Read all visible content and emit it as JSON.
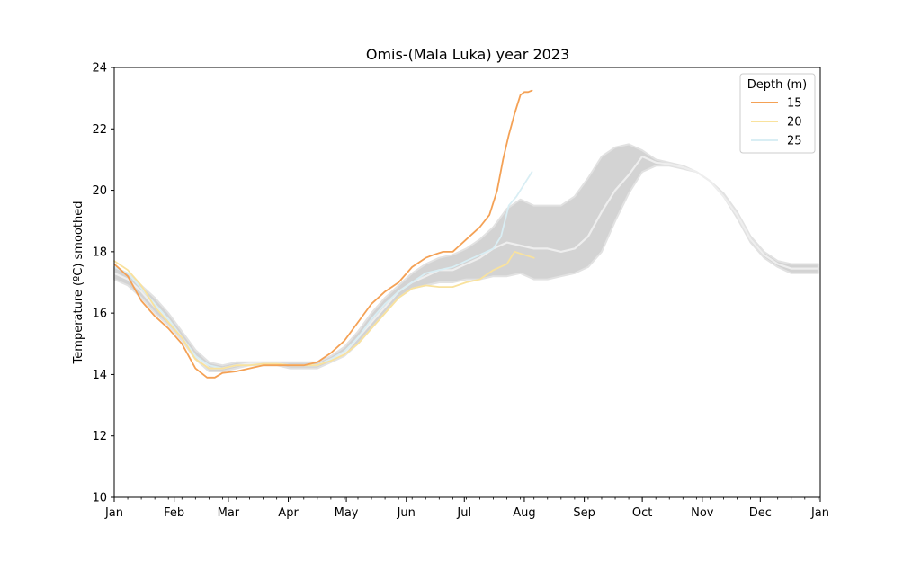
{
  "chart_data": {
    "type": "line",
    "title": "Omis-(Mala Luka) year 2023",
    "xlabel": "",
    "ylabel": "Temperature (ºC) smoothed",
    "ylim": [
      10,
      24
    ],
    "yticks": [
      10,
      12,
      14,
      16,
      18,
      20,
      22,
      24
    ],
    "xlim": [
      "2023-01-01",
      "2024-01-01"
    ],
    "xticks": [
      {
        "date": "2023-01-01",
        "label": "Jan"
      },
      {
        "date": "2023-02-01",
        "label": "Feb"
      },
      {
        "date": "2023-03-01",
        "label": "Mar"
      },
      {
        "date": "2023-04-01",
        "label": "Apr"
      },
      {
        "date": "2023-05-01",
        "label": "May"
      },
      {
        "date": "2023-06-01",
        "label": "Jun"
      },
      {
        "date": "2023-07-01",
        "label": "Jul"
      },
      {
        "date": "2023-08-01",
        "label": "Aug"
      },
      {
        "date": "2023-09-01",
        "label": "Sep"
      },
      {
        "date": "2023-10-01",
        "label": "Oct"
      },
      {
        "date": "2023-11-01",
        "label": "Nov"
      },
      {
        "date": "2023-12-01",
        "label": "Dec"
      },
      {
        "date": "2024-01-01",
        "label": "Jan"
      }
    ],
    "grid": false,
    "legend": {
      "title": "Depth (m)",
      "position": "top-right"
    },
    "band": {
      "color": "#d3d3d3",
      "x": [
        "2023-01-01",
        "2023-01-08",
        "2023-01-15",
        "2023-01-22",
        "2023-01-29",
        "2023-02-05",
        "2023-02-12",
        "2023-02-19",
        "2023-02-26",
        "2023-03-05",
        "2023-03-12",
        "2023-03-19",
        "2023-03-26",
        "2023-04-02",
        "2023-04-09",
        "2023-04-16",
        "2023-04-23",
        "2023-04-30",
        "2023-05-07",
        "2023-05-14",
        "2023-05-21",
        "2023-05-28",
        "2023-06-04",
        "2023-06-11",
        "2023-06-18",
        "2023-06-25",
        "2023-07-02",
        "2023-07-09",
        "2023-07-16",
        "2023-07-23",
        "2023-07-30",
        "2023-08-06",
        "2023-08-13",
        "2023-08-20",
        "2023-08-27",
        "2023-09-03",
        "2023-09-10",
        "2023-09-17",
        "2023-09-24",
        "2023-10-01",
        "2023-10-08",
        "2023-10-15",
        "2023-10-22",
        "2023-10-29",
        "2023-11-05",
        "2023-11-12",
        "2023-11-19",
        "2023-11-26",
        "2023-12-03",
        "2023-12-10",
        "2023-12-17",
        "2023-12-24",
        "2023-12-31"
      ],
      "lower": [
        17.1,
        16.9,
        16.5,
        16.0,
        15.6,
        15.1,
        14.5,
        14.1,
        14.1,
        14.2,
        14.3,
        14.3,
        14.3,
        14.2,
        14.2,
        14.2,
        14.4,
        14.6,
        15.0,
        15.5,
        16.0,
        16.5,
        16.8,
        16.9,
        17.0,
        17.0,
        17.1,
        17.1,
        17.2,
        17.2,
        17.3,
        17.1,
        17.1,
        17.2,
        17.3,
        17.5,
        18.0,
        19.0,
        19.9,
        20.6,
        20.8,
        20.8,
        20.7,
        20.6,
        20.3,
        19.8,
        19.1,
        18.3,
        17.8,
        17.5,
        17.3,
        17.3,
        17.3
      ],
      "upper": [
        17.5,
        17.3,
        16.9,
        16.5,
        16.0,
        15.4,
        14.8,
        14.4,
        14.3,
        14.4,
        14.4,
        14.4,
        14.4,
        14.4,
        14.4,
        14.4,
        14.6,
        14.9,
        15.4,
        16.0,
        16.5,
        16.9,
        17.3,
        17.6,
        17.8,
        17.9,
        18.1,
        18.4,
        18.8,
        19.4,
        19.7,
        19.5,
        19.5,
        19.5,
        19.8,
        20.4,
        21.1,
        21.4,
        21.5,
        21.3,
        21.0,
        20.9,
        20.8,
        20.6,
        20.3,
        19.9,
        19.3,
        18.5,
        18.0,
        17.7,
        17.6,
        17.6,
        17.6
      ],
      "mean": [
        17.3,
        17.1,
        16.7,
        16.2,
        15.8,
        15.2,
        14.6,
        14.2,
        14.2,
        14.3,
        14.35,
        14.35,
        14.35,
        14.3,
        14.3,
        14.3,
        14.5,
        14.7,
        15.2,
        15.7,
        16.2,
        16.7,
        17.0,
        17.2,
        17.4,
        17.4,
        17.6,
        17.8,
        18.1,
        18.3,
        18.2,
        18.1,
        18.1,
        18.0,
        18.1,
        18.5,
        19.3,
        20.0,
        20.5,
        21.1,
        20.9,
        20.85,
        20.75,
        20.6,
        20.3,
        19.8,
        19.2,
        18.4,
        17.9,
        17.6,
        17.45,
        17.45,
        17.45
      ]
    },
    "series": [
      {
        "name": "15",
        "color": "#f4a155",
        "x": [
          "2023-01-01",
          "2023-01-08",
          "2023-01-15",
          "2023-01-22",
          "2023-01-29",
          "2023-02-05",
          "2023-02-12",
          "2023-02-18",
          "2023-02-22",
          "2023-02-26",
          "2023-03-05",
          "2023-03-12",
          "2023-03-19",
          "2023-03-26",
          "2023-04-02",
          "2023-04-09",
          "2023-04-16",
          "2023-04-23",
          "2023-04-30",
          "2023-05-07",
          "2023-05-14",
          "2023-05-21",
          "2023-05-28",
          "2023-06-04",
          "2023-06-11",
          "2023-06-15",
          "2023-06-20",
          "2023-06-25",
          "2023-07-02",
          "2023-07-09",
          "2023-07-14",
          "2023-07-18",
          "2023-07-21",
          "2023-07-24",
          "2023-07-27",
          "2023-07-30",
          "2023-08-01",
          "2023-08-03",
          "2023-08-05"
        ],
        "y": [
          17.6,
          17.2,
          16.4,
          15.9,
          15.5,
          15.0,
          14.2,
          13.9,
          13.9,
          14.05,
          14.1,
          14.2,
          14.3,
          14.3,
          14.3,
          14.3,
          14.4,
          14.7,
          15.1,
          15.7,
          16.3,
          16.7,
          17.0,
          17.5,
          17.8,
          17.9,
          18.0,
          18.0,
          18.4,
          18.8,
          19.2,
          20.0,
          21.0,
          21.8,
          22.5,
          23.1,
          23.2,
          23.2,
          23.25
        ]
      },
      {
        "name": "20",
        "color": "#f9e29d",
        "x": [
          "2023-01-01",
          "2023-01-08",
          "2023-01-15",
          "2023-01-22",
          "2023-01-29",
          "2023-02-05",
          "2023-02-12",
          "2023-02-19",
          "2023-02-26",
          "2023-03-05",
          "2023-03-12",
          "2023-03-19",
          "2023-03-26",
          "2023-04-02",
          "2023-04-09",
          "2023-04-16",
          "2023-04-23",
          "2023-04-30",
          "2023-05-07",
          "2023-05-14",
          "2023-05-21",
          "2023-05-28",
          "2023-06-04",
          "2023-06-11",
          "2023-06-18",
          "2023-06-25",
          "2023-07-02",
          "2023-07-09",
          "2023-07-16",
          "2023-07-23",
          "2023-07-27",
          "2023-08-01",
          "2023-08-06"
        ],
        "y": [
          17.7,
          17.4,
          16.9,
          16.2,
          15.7,
          15.2,
          14.5,
          14.2,
          14.2,
          14.3,
          14.3,
          14.35,
          14.35,
          14.3,
          14.3,
          14.3,
          14.45,
          14.65,
          15.0,
          15.5,
          16.0,
          16.5,
          16.8,
          16.9,
          16.85,
          16.85,
          17.0,
          17.1,
          17.4,
          17.6,
          18.0,
          17.9,
          17.8
        ]
      },
      {
        "name": "25",
        "color": "#d9eef4",
        "x": [
          "2023-01-01",
          "2023-01-08",
          "2023-01-15",
          "2023-01-22",
          "2023-01-29",
          "2023-02-05",
          "2023-02-12",
          "2023-02-19",
          "2023-02-26",
          "2023-03-05",
          "2023-03-12",
          "2023-03-19",
          "2023-03-26",
          "2023-04-02",
          "2023-04-09",
          "2023-04-16",
          "2023-04-23",
          "2023-04-30",
          "2023-05-07",
          "2023-05-14",
          "2023-05-21",
          "2023-05-28",
          "2023-06-04",
          "2023-06-11",
          "2023-06-18",
          "2023-06-25",
          "2023-07-02",
          "2023-07-09",
          "2023-07-16",
          "2023-07-20",
          "2023-07-24",
          "2023-07-28",
          "2023-08-01",
          "2023-08-05"
        ],
        "y": [
          17.5,
          17.3,
          16.8,
          16.3,
          15.8,
          15.2,
          14.6,
          14.3,
          14.2,
          14.3,
          14.3,
          14.35,
          14.35,
          14.3,
          14.3,
          14.3,
          14.5,
          14.75,
          15.2,
          15.8,
          16.3,
          16.7,
          17.0,
          17.3,
          17.4,
          17.5,
          17.7,
          17.9,
          18.1,
          18.5,
          19.5,
          19.8,
          20.2,
          20.6
        ]
      }
    ]
  }
}
